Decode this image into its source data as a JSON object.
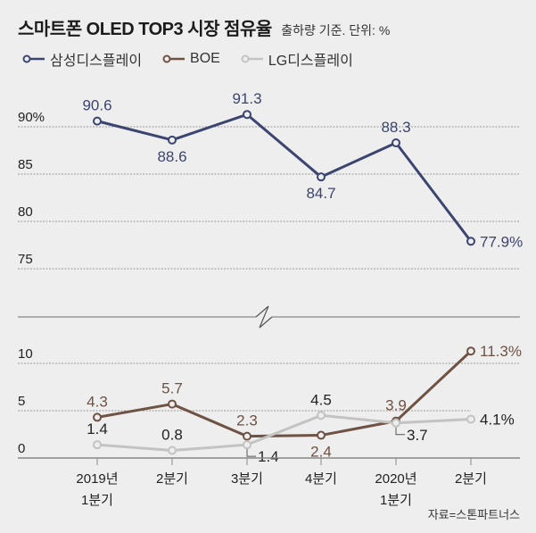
{
  "title": "스마트폰 OLED TOP3 시장 점유율",
  "subtitle": "출하량 기준. 단위: %",
  "source": "자료=스톤파트너스",
  "colors": {
    "samsung": "#3b4570",
    "boe": "#6e5244",
    "lg": "#c3c3c3",
    "grid": "#999999",
    "axis": "#888888",
    "text": "#222222"
  },
  "legend": [
    {
      "name": "삼성디스플레이",
      "color": "#3b4570"
    },
    {
      "name": "BOE",
      "color": "#6e5244"
    },
    {
      "name": "LG디스플레이",
      "color": "#c3c3c3"
    }
  ],
  "chart_data": {
    "type": "line",
    "title": "스마트폰 OLED TOP3 시장 점유율",
    "subtitle": "출하량 기준. 단위: %",
    "categories": [
      [
        "2019년",
        "1분기"
      ],
      [
        "2분기"
      ],
      [
        "3분기"
      ],
      [
        "4분기"
      ],
      [
        "2020년",
        "1분기"
      ],
      [
        "2분기"
      ]
    ],
    "panels": [
      {
        "name": "upper",
        "ylim": [
          75,
          91.5
        ],
        "yticks": [
          {
            "value": 90,
            "label": "90%"
          },
          {
            "value": 85,
            "label": "85"
          },
          {
            "value": 80,
            "label": "80"
          },
          {
            "value": 75,
            "label": "75"
          }
        ],
        "series": [
          {
            "name": "삼성디스플레이",
            "color": "#3b4570",
            "values": [
              90.6,
              88.6,
              91.3,
              84.7,
              88.3,
              77.9
            ],
            "labels": [
              "90.6",
              "88.6",
              "91.3",
              "84.7",
              "88.3",
              "77.9%"
            ],
            "label_pos": [
              "above",
              "below",
              "above",
              "below",
              "above",
              "right"
            ]
          }
        ]
      },
      {
        "name": "lower",
        "ylim": [
          0,
          11.5
        ],
        "yticks": [
          {
            "value": 10,
            "label": "10"
          },
          {
            "value": 5,
            "label": "5"
          },
          {
            "value": 0,
            "label": "0"
          }
        ],
        "series": [
          {
            "name": "BOE",
            "color": "#6e5244",
            "values": [
              4.3,
              5.7,
              2.3,
              2.4,
              3.9,
              11.3
            ],
            "labels": [
              "4.3",
              "5.7",
              "2.3",
              "2.4",
              "3.9",
              "11.3%"
            ],
            "label_pos": [
              "above",
              "above",
              "above",
              "below",
              "above",
              "right"
            ]
          },
          {
            "name": "LG디스플레이",
            "color": "#c3c3c3",
            "values": [
              1.4,
              0.8,
              1.4,
              4.5,
              3.7,
              4.1
            ],
            "labels": [
              "1.4",
              "0.8",
              "1.4",
              "4.5",
              "3.7",
              "4.1%"
            ],
            "label_pos": [
              "above",
              "above",
              "callout",
              "above",
              "callout",
              "right"
            ]
          }
        ]
      }
    ],
    "axis_break": true,
    "grid": true,
    "legend_position": "top-left",
    "xlabel": "",
    "ylabel": "%"
  }
}
